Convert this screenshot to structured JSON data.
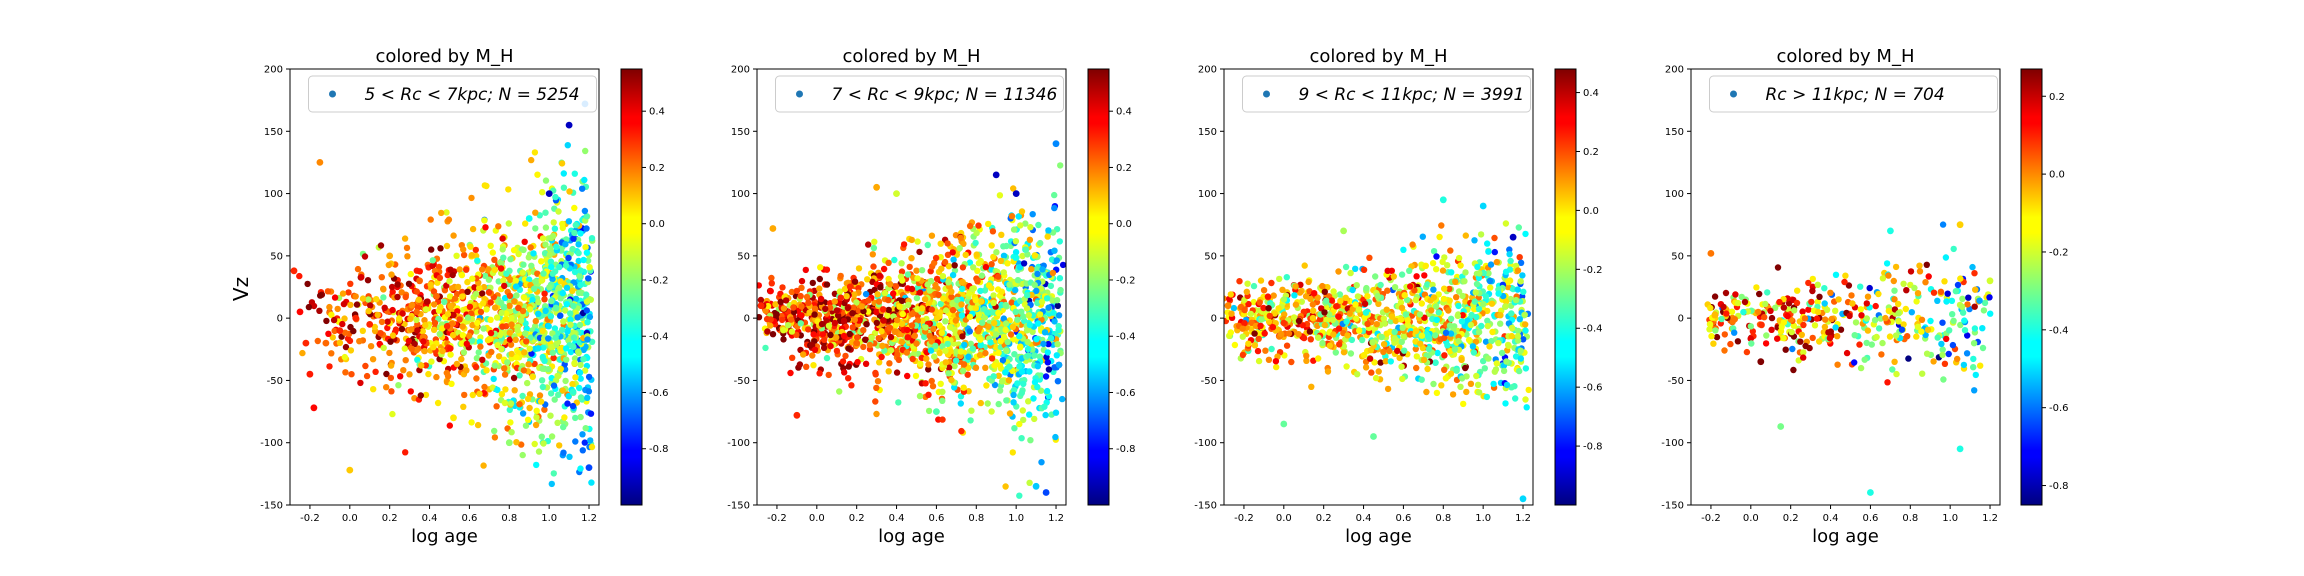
{
  "figure": {
    "shared_ylabel": "Vz",
    "xlabel": "log age"
  },
  "chart_data": [
    {
      "type": "scatter",
      "title": "colored by M_H",
      "xlabel": "log age",
      "ylabel": "Vz",
      "xlim": [
        -0.3,
        1.25
      ],
      "ylim": [
        -150,
        200
      ],
      "xticks": [
        "-0.2",
        "0.0",
        "0.2",
        "0.4",
        "0.6",
        "0.8",
        "1.0",
        "1.2"
      ],
      "yticks": [
        "-150",
        "-100",
        "-50",
        "0",
        "50",
        "100",
        "150",
        "200"
      ],
      "legend": {
        "label": "5 < Rc < 7kpc;  N = 5254",
        "placement": "upper-center",
        "marker_color": "#1f77b4"
      },
      "colorbar": {
        "min": -1.0,
        "max": 0.55,
        "ticks": [
          "-0.8",
          "-0.6",
          "-0.4",
          "-0.2",
          "0.0",
          "0.2",
          "0.4"
        ]
      },
      "grid": false,
      "n_points": 5254,
      "sample_points": [
        [
          -0.28,
          38,
          0.3
        ],
        [
          -0.25,
          5,
          0.35
        ],
        [
          -0.22,
          -20,
          0.3
        ],
        [
          -0.2,
          -45,
          0.32
        ],
        [
          -0.18,
          -72,
          0.35
        ],
        [
          -0.15,
          125,
          0.15
        ],
        [
          -0.12,
          -20,
          0.2
        ],
        [
          -0.05,
          -10,
          0.3
        ],
        [
          0.0,
          -122,
          0.05
        ],
        [
          0.03,
          0,
          0.3
        ],
        [
          0.1,
          -5,
          0.3
        ],
        [
          0.2,
          50,
          0.1
        ],
        [
          0.35,
          30,
          0.2
        ],
        [
          0.52,
          -80,
          0.0
        ],
        [
          0.8,
          -100,
          -0.2
        ],
        [
          0.9,
          80,
          -0.4
        ],
        [
          1.0,
          100,
          -0.9
        ],
        [
          1.1,
          155,
          -0.9
        ],
        [
          1.18,
          172,
          -0.6
        ],
        [
          1.2,
          -120,
          -0.7
        ]
      ]
    },
    {
      "type": "scatter",
      "title": "colored by M_H",
      "xlabel": "log age",
      "ylabel": "",
      "xlim": [
        -0.3,
        1.25
      ],
      "ylim": [
        -150,
        200
      ],
      "xticks": [
        "-0.2",
        "0.0",
        "0.2",
        "0.4",
        "0.6",
        "0.8",
        "1.0",
        "1.2"
      ],
      "yticks": [
        "-150",
        "-100",
        "-50",
        "0",
        "50",
        "100",
        "150",
        "200"
      ],
      "legend": {
        "label": "7 < Rc < 9kpc;  N = 11346",
        "placement": "upper-center",
        "marker_color": "#1f77b4"
      },
      "colorbar": {
        "min": -1.0,
        "max": 0.55,
        "ticks": [
          "-0.8",
          "-0.6",
          "-0.4",
          "-0.2",
          "0.0",
          "0.2",
          "0.4"
        ]
      },
      "grid": false,
      "n_points": 11346,
      "sample_points": [
        [
          -0.28,
          10,
          0.3
        ],
        [
          -0.22,
          72,
          0.1
        ],
        [
          -0.1,
          -78,
          0.3
        ],
        [
          0.3,
          105,
          0.1
        ],
        [
          0.4,
          100,
          -0.1
        ],
        [
          0.9,
          115,
          -0.9
        ],
        [
          1.0,
          100,
          -0.9
        ],
        [
          1.2,
          140,
          -0.6
        ],
        [
          1.15,
          -140,
          -0.7
        ],
        [
          1.1,
          -135,
          -0.5
        ],
        [
          0.6,
          -75,
          -0.3
        ],
        [
          0.2,
          -20,
          0.2
        ]
      ]
    },
    {
      "type": "scatter",
      "title": "colored by M_H",
      "xlabel": "log age",
      "ylabel": "",
      "xlim": [
        -0.3,
        1.25
      ],
      "ylim": [
        -150,
        200
      ],
      "xticks": [
        "-0.2",
        "0.0",
        "0.2",
        "0.4",
        "0.6",
        "0.8",
        "1.0",
        "1.2"
      ],
      "yticks": [
        "-150",
        "-100",
        "-50",
        "0",
        "50",
        "100",
        "150",
        "200"
      ],
      "legend": {
        "label": "9 < Rc < 11kpc;  N = 3991",
        "placement": "upper-center",
        "marker_color": "#1f77b4"
      },
      "colorbar": {
        "min": -1.0,
        "max": 0.48,
        "ticks": [
          "-0.8",
          "-0.6",
          "-0.4",
          "-0.2",
          "0.0",
          "0.2",
          "0.4"
        ]
      },
      "grid": false,
      "n_points": 3991,
      "sample_points": [
        [
          -0.28,
          10,
          0.1
        ],
        [
          0.0,
          -85,
          -0.3
        ],
        [
          0.3,
          70,
          -0.2
        ],
        [
          0.45,
          -95,
          -0.3
        ],
        [
          0.8,
          95,
          -0.4
        ],
        [
          1.0,
          90,
          -0.5
        ],
        [
          1.2,
          -145,
          -0.5
        ],
        [
          1.15,
          65,
          -0.9
        ]
      ]
    },
    {
      "type": "scatter",
      "title": "colored by M_H",
      "xlabel": "log age",
      "ylabel": "",
      "xlim": [
        -0.3,
        1.25
      ],
      "ylim": [
        -150,
        200
      ],
      "xticks": [
        "-0.2",
        "0.0",
        "0.2",
        "0.4",
        "0.6",
        "0.8",
        "1.0",
        "1.2"
      ],
      "yticks": [
        "-150",
        "-100",
        "-50",
        "0",
        "50",
        "100",
        "150",
        "200"
      ],
      "legend": {
        "label": "Rc > 11kpc;  N = 704",
        "placement": "upper-center",
        "marker_color": "#1f77b4"
      },
      "colorbar": {
        "min": -0.85,
        "max": 0.27,
        "ticks": [
          "-0.8",
          "-0.6",
          "-0.4",
          "-0.2",
          "0.0",
          "0.2"
        ]
      },
      "grid": false,
      "n_points": 704,
      "sample_points": [
        [
          -0.2,
          52,
          0.0
        ],
        [
          0.05,
          -35,
          0.3
        ],
        [
          0.15,
          -87,
          -0.3
        ],
        [
          0.6,
          -140,
          -0.4
        ],
        [
          0.7,
          70,
          -0.4
        ],
        [
          1.05,
          -105,
          -0.4
        ],
        [
          1.05,
          75,
          -0.1
        ],
        [
          1.2,
          30,
          -0.2
        ]
      ]
    }
  ]
}
